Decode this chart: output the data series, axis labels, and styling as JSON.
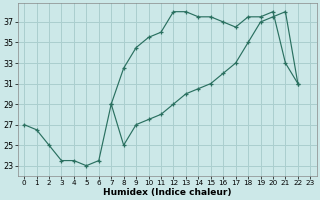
{
  "xlabel": "Humidex (Indice chaleur)",
  "background_color": "#cce8e8",
  "grid_color": "#aacece",
  "line_color": "#2a7060",
  "xlim": [
    -0.5,
    23.5
  ],
  "ylim": [
    22.0,
    38.8
  ],
  "xticks": [
    0,
    1,
    2,
    3,
    4,
    5,
    6,
    7,
    8,
    9,
    10,
    11,
    12,
    13,
    14,
    15,
    16,
    17,
    18,
    19,
    20,
    21,
    22,
    23
  ],
  "yticks": [
    23,
    25,
    27,
    29,
    31,
    33,
    35,
    37
  ],
  "curve1_x": [
    0,
    1,
    2,
    3,
    4,
    5,
    6,
    7,
    8,
    9,
    10,
    11,
    12,
    13,
    14,
    15,
    16,
    17,
    18,
    19,
    20,
    21,
    22
  ],
  "curve1_y": [
    27.0,
    26.5,
    25.0,
    23.5,
    23.5,
    23.0,
    23.5,
    29.0,
    32.5,
    34.5,
    35.5,
    36.0,
    38.0,
    38.0,
    37.5,
    37.5,
    37.0,
    36.5,
    37.5,
    37.5,
    38.0,
    33.0,
    31.0
  ],
  "curve2_x": [
    7,
    8,
    9,
    10,
    11,
    12,
    13,
    14,
    15,
    16,
    17,
    18,
    19,
    20,
    21,
    22
  ],
  "curve2_y": [
    29.0,
    25.0,
    27.0,
    27.5,
    28.0,
    29.0,
    30.0,
    30.5,
    31.0,
    32.0,
    33.0,
    35.0,
    37.0,
    37.5,
    38.0,
    31.0
  ]
}
